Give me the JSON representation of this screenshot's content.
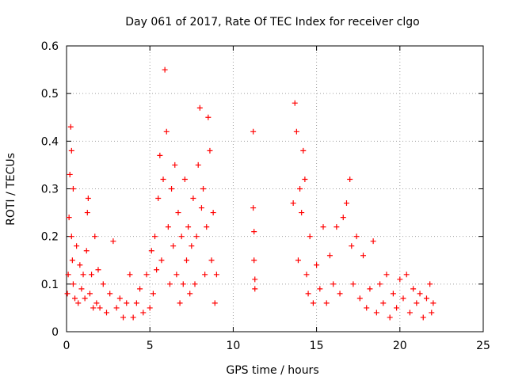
{
  "chart_data": {
    "type": "scatter",
    "title": "Day 061 of 2017, Rate Of TEC Index for receiver clgo",
    "xlabel": "GPS time / hours",
    "ylabel": "ROTI / TECUs",
    "xlim": [
      0,
      25
    ],
    "ylim": [
      0,
      0.6
    ],
    "xticks": [
      0,
      5,
      10,
      15,
      20,
      25
    ],
    "yticks": [
      0,
      0.1,
      0.2,
      0.3,
      0.4,
      0.5,
      0.6
    ],
    "xtick_labels": [
      "0",
      "5",
      "10",
      "15",
      "20",
      "25"
    ],
    "ytick_labels": [
      "0",
      "0.1",
      "0.2",
      "0.3",
      "0.4",
      "0.5",
      "0.6"
    ],
    "grid": true,
    "marker": "+",
    "color": "#ff0000",
    "series": [
      {
        "name": "ROTI",
        "points": [
          [
            0.05,
            0.08
          ],
          [
            0.1,
            0.12
          ],
          [
            0.15,
            0.24
          ],
          [
            0.2,
            0.33
          ],
          [
            0.25,
            0.43
          ],
          [
            0.3,
            0.38
          ],
          [
            0.3,
            0.2
          ],
          [
            0.35,
            0.15
          ],
          [
            0.4,
            0.3
          ],
          [
            0.4,
            0.1
          ],
          [
            0.5,
            0.07
          ],
          [
            0.6,
            0.18
          ],
          [
            0.7,
            0.06
          ],
          [
            0.8,
            0.14
          ],
          [
            0.9,
            0.09
          ],
          [
            1.0,
            0.12
          ],
          [
            1.1,
            0.07
          ],
          [
            1.2,
            0.17
          ],
          [
            1.25,
            0.25
          ],
          [
            1.3,
            0.28
          ],
          [
            1.4,
            0.08
          ],
          [
            1.5,
            0.12
          ],
          [
            1.6,
            0.05
          ],
          [
            1.7,
            0.2
          ],
          [
            1.8,
            0.06
          ],
          [
            1.9,
            0.13
          ],
          [
            2.0,
            0.05
          ],
          [
            2.2,
            0.1
          ],
          [
            2.4,
            0.04
          ],
          [
            2.6,
            0.08
          ],
          [
            2.8,
            0.19
          ],
          [
            3.0,
            0.05
          ],
          [
            3.2,
            0.07
          ],
          [
            3.4,
            0.03
          ],
          [
            3.6,
            0.06
          ],
          [
            3.8,
            0.12
          ],
          [
            4.0,
            0.03
          ],
          [
            4.2,
            0.06
          ],
          [
            4.4,
            0.09
          ],
          [
            4.6,
            0.04
          ],
          [
            4.8,
            0.12
          ],
          [
            5.0,
            0.05
          ],
          [
            5.1,
            0.17
          ],
          [
            5.2,
            0.08
          ],
          [
            5.3,
            0.2
          ],
          [
            5.4,
            0.13
          ],
          [
            5.5,
            0.28
          ],
          [
            5.6,
            0.37
          ],
          [
            5.7,
            0.15
          ],
          [
            5.8,
            0.32
          ],
          [
            5.9,
            0.55
          ],
          [
            6.0,
            0.42
          ],
          [
            6.1,
            0.22
          ],
          [
            6.2,
            0.1
          ],
          [
            6.3,
            0.3
          ],
          [
            6.4,
            0.18
          ],
          [
            6.5,
            0.35
          ],
          [
            6.6,
            0.12
          ],
          [
            6.7,
            0.25
          ],
          [
            6.8,
            0.06
          ],
          [
            6.9,
            0.2
          ],
          [
            7.0,
            0.1
          ],
          [
            7.1,
            0.32
          ],
          [
            7.2,
            0.15
          ],
          [
            7.3,
            0.22
          ],
          [
            7.4,
            0.08
          ],
          [
            7.5,
            0.18
          ],
          [
            7.6,
            0.28
          ],
          [
            7.7,
            0.1
          ],
          [
            7.8,
            0.2
          ],
          [
            7.9,
            0.35
          ],
          [
            8.0,
            0.47
          ],
          [
            8.1,
            0.26
          ],
          [
            8.2,
            0.3
          ],
          [
            8.3,
            0.12
          ],
          [
            8.4,
            0.22
          ],
          [
            8.5,
            0.45
          ],
          [
            8.6,
            0.38
          ],
          [
            8.7,
            0.15
          ],
          [
            8.8,
            0.25
          ],
          [
            8.9,
            0.06
          ],
          [
            9.0,
            0.12
          ],
          [
            11.2,
            0.42
          ],
          [
            11.2,
            0.26
          ],
          [
            11.25,
            0.21
          ],
          [
            11.25,
            0.15
          ],
          [
            11.3,
            0.11
          ],
          [
            11.3,
            0.09
          ],
          [
            13.6,
            0.27
          ],
          [
            13.7,
            0.48
          ],
          [
            13.8,
            0.42
          ],
          [
            13.9,
            0.15
          ],
          [
            14.0,
            0.3
          ],
          [
            14.1,
            0.25
          ],
          [
            14.2,
            0.38
          ],
          [
            14.3,
            0.32
          ],
          [
            14.4,
            0.12
          ],
          [
            14.5,
            0.08
          ],
          [
            14.6,
            0.2
          ],
          [
            14.8,
            0.06
          ],
          [
            15.0,
            0.14
          ],
          [
            15.2,
            0.09
          ],
          [
            15.4,
            0.22
          ],
          [
            15.6,
            0.06
          ],
          [
            15.8,
            0.16
          ],
          [
            16.0,
            0.1
          ],
          [
            16.2,
            0.22
          ],
          [
            16.4,
            0.08
          ],
          [
            16.6,
            0.24
          ],
          [
            16.8,
            0.27
          ],
          [
            17.0,
            0.32
          ],
          [
            17.1,
            0.18
          ],
          [
            17.2,
            0.1
          ],
          [
            17.4,
            0.2
          ],
          [
            17.6,
            0.07
          ],
          [
            17.8,
            0.16
          ],
          [
            18.0,
            0.05
          ],
          [
            18.2,
            0.09
          ],
          [
            18.4,
            0.19
          ],
          [
            18.6,
            0.04
          ],
          [
            18.8,
            0.1
          ],
          [
            19.0,
            0.06
          ],
          [
            19.2,
            0.12
          ],
          [
            19.4,
            0.03
          ],
          [
            19.6,
            0.08
          ],
          [
            19.8,
            0.05
          ],
          [
            20.0,
            0.11
          ],
          [
            20.2,
            0.07
          ],
          [
            20.4,
            0.12
          ],
          [
            20.6,
            0.04
          ],
          [
            20.8,
            0.09
          ],
          [
            21.0,
            0.06
          ],
          [
            21.2,
            0.08
          ],
          [
            21.4,
            0.03
          ],
          [
            21.6,
            0.07
          ],
          [
            21.8,
            0.1
          ],
          [
            21.9,
            0.04
          ],
          [
            22.0,
            0.06
          ]
        ]
      }
    ]
  }
}
